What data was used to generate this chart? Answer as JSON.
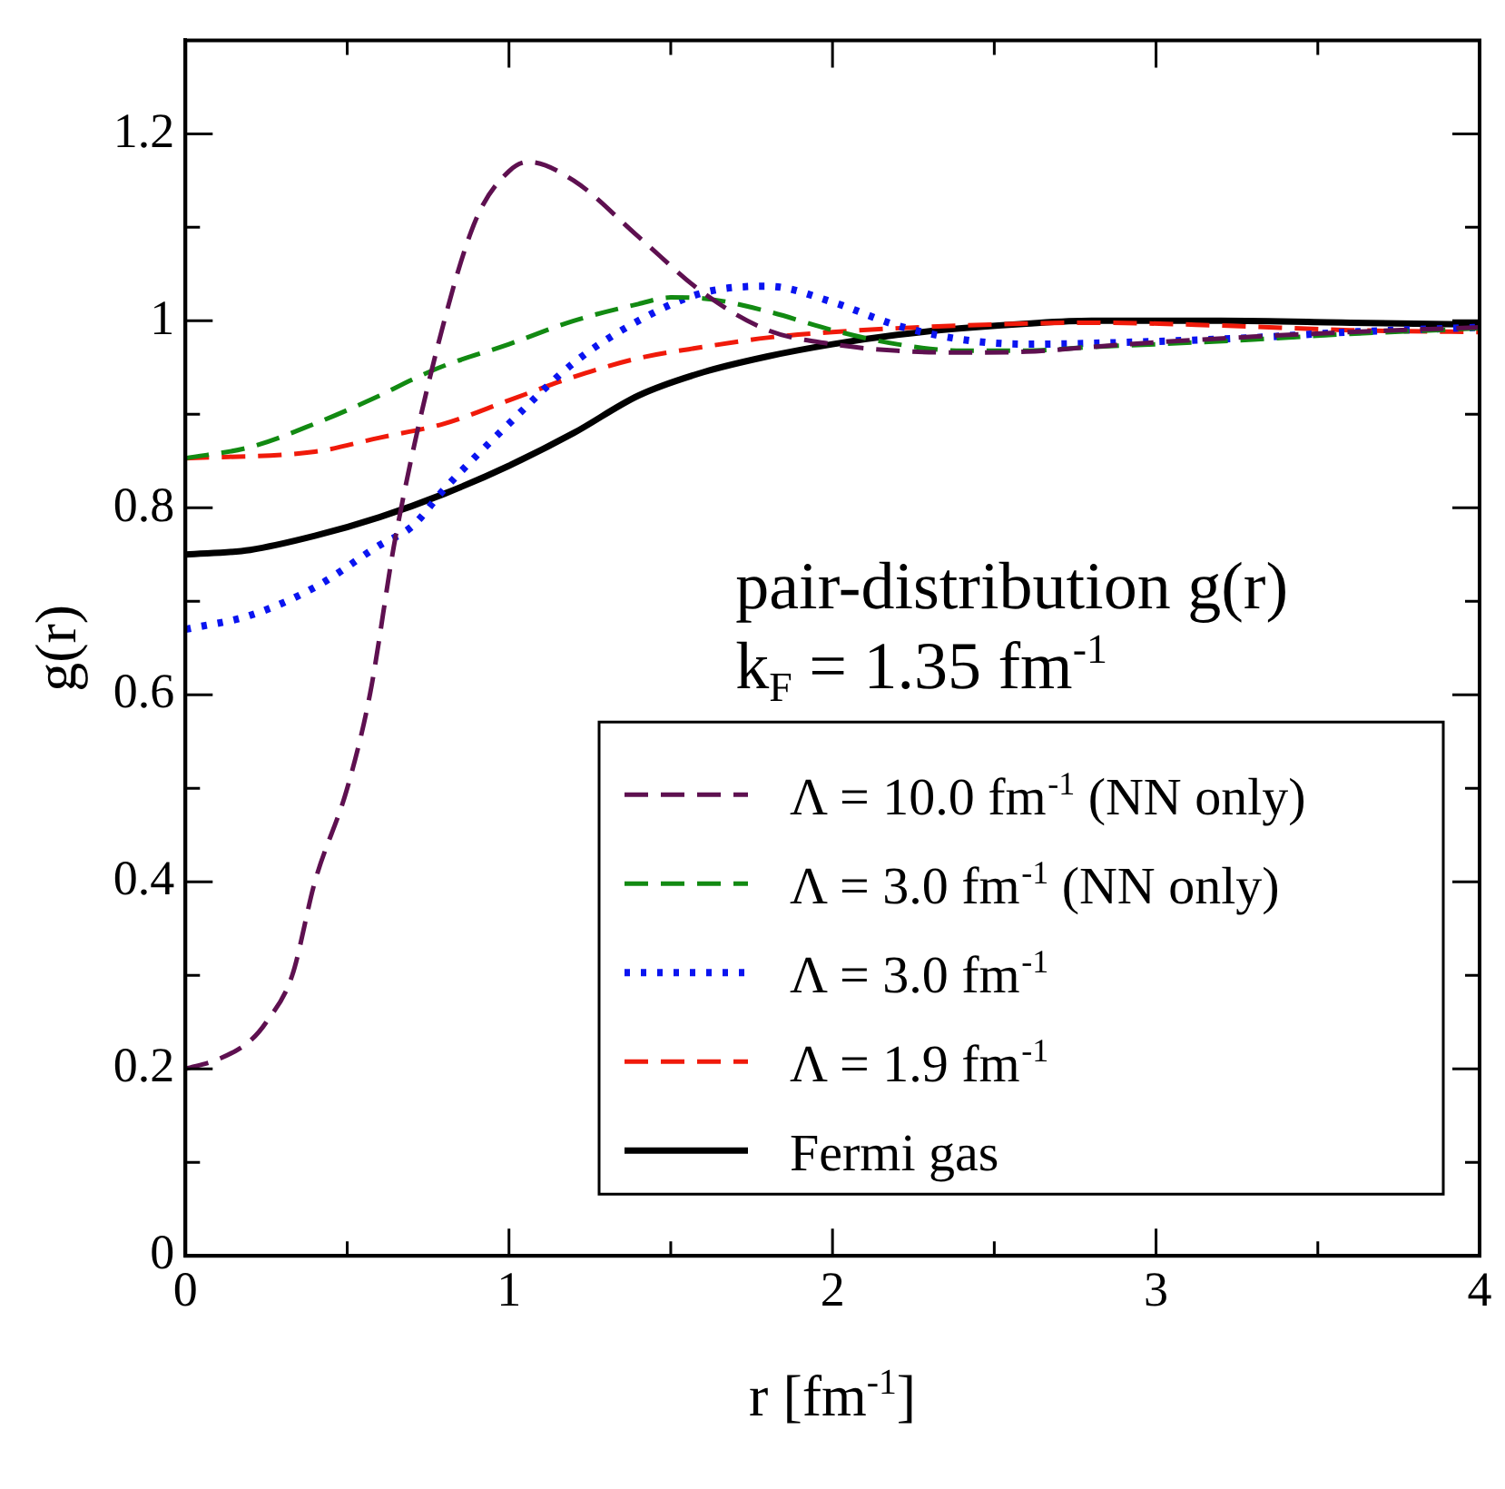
{
  "chart_data": {
    "type": "line",
    "xlabel": "r [fm$^{-1}$]",
    "ylabel": "g(r)",
    "annotations": [
      "pair-distribution g(r)",
      "k$_{F}$ = 1.35 fm$^{-1}$"
    ],
    "xlim": [
      0,
      4
    ],
    "ylim": [
      0,
      1.3
    ],
    "xticks": [
      0,
      {
        "value": 0.5,
        "label": null
      },
      1,
      {
        "value": 1.5,
        "label": null
      },
      2,
      {
        "value": 2.5,
        "label": null
      },
      3,
      {
        "value": 3.5,
        "label": null
      },
      4
    ],
    "yticks": [
      0,
      {
        "value": 0.1,
        "label": null
      },
      0.2,
      {
        "value": 0.3,
        "label": null
      },
      0.4,
      {
        "value": 0.5,
        "label": null
      },
      0.6,
      {
        "value": 0.7,
        "label": null
      },
      0.8,
      {
        "value": 0.9,
        "label": null
      },
      1,
      {
        "value": 1.1,
        "label": null
      },
      1.2
    ],
    "legend": "bottom right",
    "marker": "none",
    "grid": false,
    "series": [
      {
        "name": "Λ = 10.0 fm$^{-1}$ (NN only)",
        "color": "#5e1050",
        "line_style": "dashed",
        "x": [
          0,
          0.1,
          0.2,
          0.25,
          0.33,
          0.4,
          0.5,
          0.57,
          0.65,
          0.8,
          0.9,
          1.0,
          1.06,
          1.2,
          1.4,
          1.6,
          1.8,
          2.0,
          2.2,
          2.4,
          2.6,
          2.8,
          3.0,
          3.3,
          3.6,
          4.0
        ],
        "values": [
          0.2,
          0.21,
          0.23,
          0.25,
          0.3,
          0.4,
          0.5,
          0.6,
          0.77,
          1.0,
          1.11,
          1.16,
          1.17,
          1.15,
          1.09,
          1.03,
          0.99,
          0.975,
          0.968,
          0.966,
          0.967,
          0.972,
          0.977,
          0.983,
          0.988,
          0.993
        ]
      },
      {
        "name": "Λ = 3.0 fm$^{-1}$ (NN only)",
        "color": "#128a12",
        "line_style": "dashed",
        "x": [
          0,
          0.2,
          0.4,
          0.6,
          0.7,
          0.8,
          1.0,
          1.2,
          1.4,
          1.5,
          1.6,
          1.8,
          2.0,
          2.2,
          2.4,
          2.6,
          2.8,
          3.0,
          3.3,
          3.6,
          4.0
        ],
        "values": [
          0.853,
          0.865,
          0.89,
          0.92,
          0.937,
          0.952,
          0.975,
          1.0,
          1.018,
          1.025,
          1.024,
          1.01,
          0.99,
          0.975,
          0.968,
          0.968,
          0.972,
          0.975,
          0.98,
          0.986,
          0.992
        ]
      },
      {
        "name": "Λ = 3.0 fm$^{-1}$",
        "color": "#0a14f0",
        "line_style": "dotted",
        "x": [
          0,
          0.2,
          0.4,
          0.6,
          0.7,
          0.8,
          1.0,
          1.2,
          1.4,
          1.6,
          1.8,
          2.0,
          2.2,
          2.4,
          2.6,
          2.8,
          3.0,
          3.3,
          3.6,
          4.0
        ],
        "values": [
          0.67,
          0.685,
          0.715,
          0.76,
          0.78,
          0.82,
          0.89,
          0.955,
          1.0,
          1.03,
          1.037,
          1.02,
          0.995,
          0.98,
          0.975,
          0.976,
          0.978,
          0.982,
          0.988,
          0.993
        ]
      },
      {
        "name": "Λ = 1.9 fm$^{-1}$",
        "color": "#f01a0a",
        "line_style": "dashed",
        "x": [
          0,
          0.4,
          0.6,
          0.8,
          1.0,
          1.2,
          1.4,
          1.6,
          1.8,
          2.0,
          2.4,
          2.8,
          3.2,
          3.6,
          4.0
        ],
        "values": [
          0.853,
          0.86,
          0.875,
          0.89,
          0.915,
          0.94,
          0.96,
          0.972,
          0.982,
          0.988,
          0.995,
          0.998,
          0.995,
          0.99,
          0.988
        ]
      },
      {
        "name": "Fermi gas",
        "color": "#000000",
        "line_style": "solid",
        "x": [
          0,
          0.2,
          0.4,
          0.6,
          0.8,
          1.0,
          1.2,
          1.4,
          1.6,
          1.8,
          2.0,
          2.2,
          2.4,
          2.6,
          2.8,
          3.2,
          3.6,
          4.0
        ],
        "values": [
          0.75,
          0.755,
          0.77,
          0.79,
          0.815,
          0.845,
          0.88,
          0.92,
          0.945,
          0.962,
          0.975,
          0.985,
          0.992,
          0.997,
          1.0,
          1.0,
          0.998,
          0.996
        ]
      }
    ]
  }
}
